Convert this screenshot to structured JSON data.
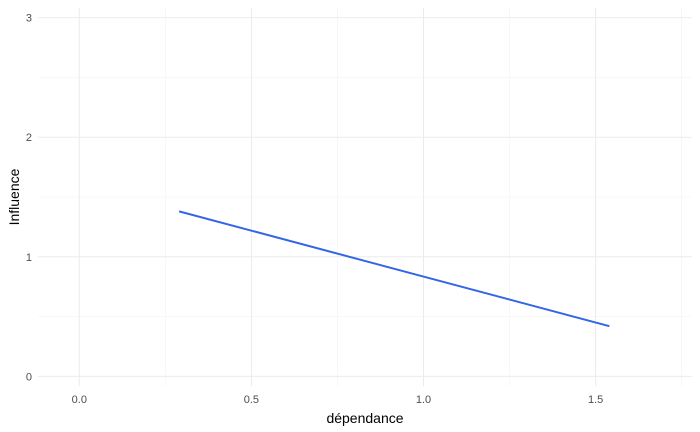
{
  "chart_data": {
    "type": "line",
    "title": "",
    "xlabel": "dépendance",
    "ylabel": "Influence",
    "xlim": [
      -0.12,
      1.78
    ],
    "ylim": [
      -0.08,
      3.08
    ],
    "x_ticks": [
      0.0,
      0.5,
      1.0,
      1.5
    ],
    "x_tick_labels": [
      "0.0",
      "0.5",
      "1.0",
      "1.5"
    ],
    "y_ticks": [
      0,
      1,
      2,
      3
    ],
    "y_tick_labels": [
      "0",
      "1",
      "2",
      "3"
    ],
    "grid": true,
    "legend": "none",
    "series": [
      {
        "color": "#3366e6",
        "x": [
          0.29,
          1.54
        ],
        "y": [
          1.38,
          0.42
        ]
      }
    ]
  }
}
